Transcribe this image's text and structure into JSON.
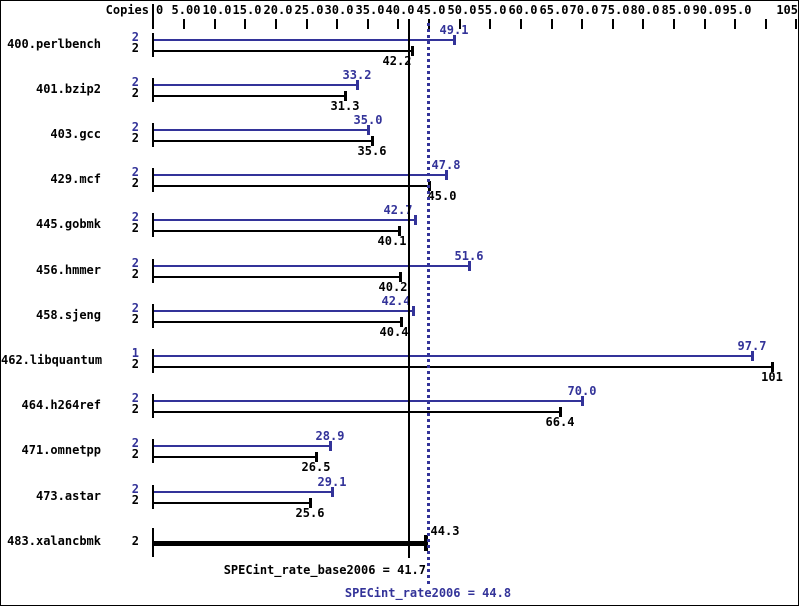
{
  "header": {
    "copies_label": "Copies"
  },
  "chart_data": {
    "type": "bar",
    "orientation": "horizontal",
    "title": "",
    "xlabel": "",
    "ylabel": "Copies",
    "x_axis": {
      "min": 0,
      "max": 105,
      "tick_step": 5,
      "tick_values": [
        0,
        5,
        10,
        15,
        20,
        25,
        30,
        35,
        40,
        45,
        50,
        55,
        60,
        65,
        70,
        75,
        80,
        85,
        90,
        95,
        100,
        105
      ],
      "tick_labels": [
        "0",
        "5.00",
        "10.0",
        "15.0",
        "20.0",
        "25.0",
        "30.0",
        "35.0",
        "40.0",
        "45.0",
        "50.0",
        "55.0",
        "60.0",
        "65.0",
        "70.0",
        "75.0",
        "80.0",
        "85.0",
        "90.0",
        "95.0",
        "",
        "105"
      ]
    },
    "legend": {
      "peak_series": "SPECint_rate2006 (peak)",
      "base_series": "SPECint_rate_base2006 (base)"
    },
    "colors": {
      "peak": "#333399",
      "base": "#000000"
    },
    "benchmarks": [
      {
        "name": "400.perlbench",
        "peak": {
          "copies": "2",
          "value": 49.1,
          "label": "49.1"
        },
        "base": {
          "copies": "2",
          "value": 42.2,
          "label": "42.2"
        }
      },
      {
        "name": "401.bzip2",
        "peak": {
          "copies": "2",
          "value": 33.2,
          "label": "33.2"
        },
        "base": {
          "copies": "2",
          "value": 31.3,
          "label": "31.3"
        }
      },
      {
        "name": "403.gcc",
        "peak": {
          "copies": "2",
          "value": 35.0,
          "label": "35.0"
        },
        "base": {
          "copies": "2",
          "value": 35.6,
          "label": "35.6"
        }
      },
      {
        "name": "429.mcf",
        "peak": {
          "copies": "2",
          "value": 47.8,
          "label": "47.8"
        },
        "base": {
          "copies": "2",
          "value": 45.0,
          "label": "45.0"
        }
      },
      {
        "name": "445.gobmk",
        "peak": {
          "copies": "2",
          "value": 42.7,
          "label": "42.7"
        },
        "base": {
          "copies": "2",
          "value": 40.1,
          "label": "40.1"
        }
      },
      {
        "name": "456.hmmer",
        "peak": {
          "copies": "2",
          "value": 51.6,
          "label": "51.6"
        },
        "base": {
          "copies": "2",
          "value": 40.2,
          "label": "40.2"
        }
      },
      {
        "name": "458.sjeng",
        "peak": {
          "copies": "2",
          "value": 42.4,
          "label": "42.4"
        },
        "base": {
          "copies": "2",
          "value": 40.4,
          "label": "40.4"
        }
      },
      {
        "name": "462.libquantum",
        "peak": {
          "copies": "1",
          "value": 97.7,
          "label": "97.7"
        },
        "base": {
          "copies": "2",
          "value": 101,
          "label": "101"
        }
      },
      {
        "name": "464.h264ref",
        "peak": {
          "copies": "2",
          "value": 70.0,
          "label": "70.0"
        },
        "base": {
          "copies": "2",
          "value": 66.4,
          "label": "66.4"
        }
      },
      {
        "name": "471.omnetpp",
        "peak": {
          "copies": "2",
          "value": 28.9,
          "label": "28.9"
        },
        "base": {
          "copies": "2",
          "value": 26.5,
          "label": "26.5"
        }
      },
      {
        "name": "473.astar",
        "peak": {
          "copies": "2",
          "value": 29.1,
          "label": "29.1"
        },
        "base": {
          "copies": "2",
          "value": 25.6,
          "label": "25.6"
        }
      },
      {
        "name": "483.xalancbmk",
        "single": true,
        "base": {
          "copies": "2",
          "value": 44.3,
          "label": "44.3"
        }
      }
    ],
    "summary": {
      "base": {
        "text": "SPECint_rate_base2006 = 41.7",
        "value": 41.7
      },
      "peak": {
        "text": "SPECint_rate2006 = 44.8",
        "value": 44.8
      }
    }
  }
}
